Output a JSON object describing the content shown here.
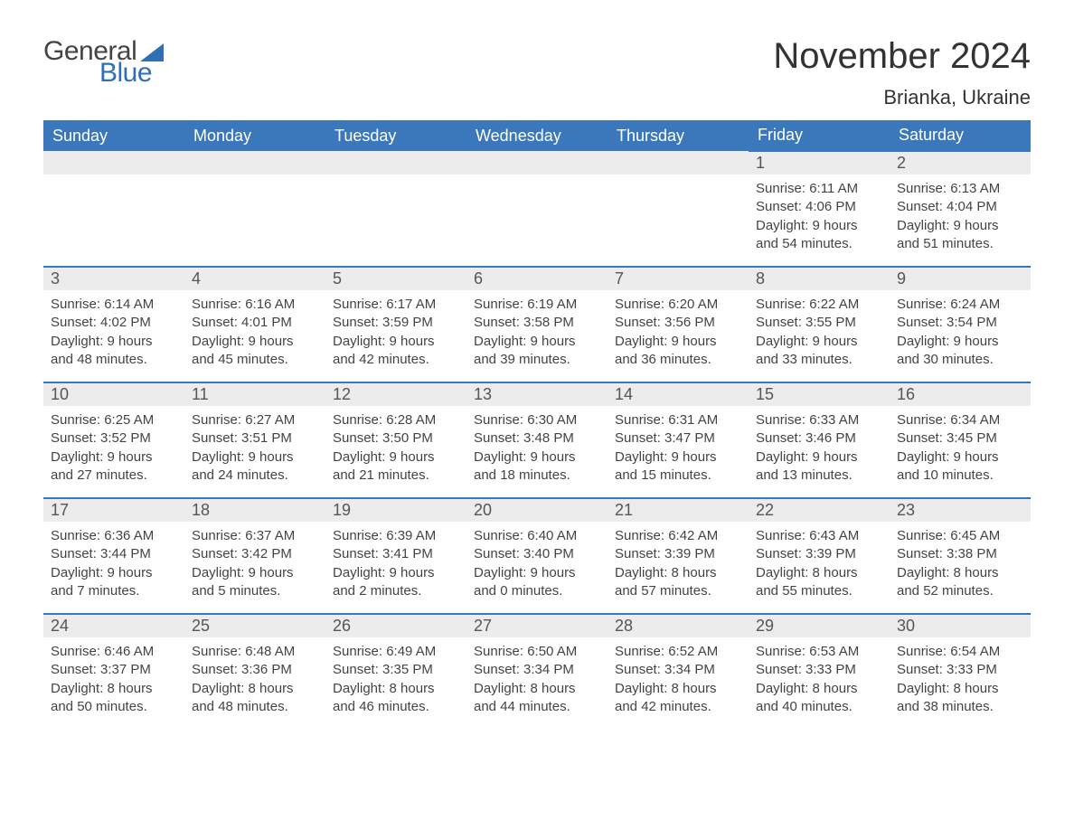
{
  "logo": {
    "text1": "General",
    "text2": "Blue"
  },
  "title": "November 2024",
  "location": "Brianka, Ukraine",
  "colors": {
    "header_bg": "#3a78bb",
    "header_text": "#ffffff",
    "daybar_bg": "#ececec",
    "daybar_text": "#555555",
    "body_text": "#444444",
    "border": "#3a78bb",
    "logo_blue": "#2f6fb3"
  },
  "weekdays": [
    "Sunday",
    "Monday",
    "Tuesday",
    "Wednesday",
    "Thursday",
    "Friday",
    "Saturday"
  ],
  "weeks": [
    [
      null,
      null,
      null,
      null,
      null,
      {
        "n": "1",
        "sr": "6:11 AM",
        "ss": "4:06 PM",
        "dl": "9 hours and 54 minutes."
      },
      {
        "n": "2",
        "sr": "6:13 AM",
        "ss": "4:04 PM",
        "dl": "9 hours and 51 minutes."
      }
    ],
    [
      {
        "n": "3",
        "sr": "6:14 AM",
        "ss": "4:02 PM",
        "dl": "9 hours and 48 minutes."
      },
      {
        "n": "4",
        "sr": "6:16 AM",
        "ss": "4:01 PM",
        "dl": "9 hours and 45 minutes."
      },
      {
        "n": "5",
        "sr": "6:17 AM",
        "ss": "3:59 PM",
        "dl": "9 hours and 42 minutes."
      },
      {
        "n": "6",
        "sr": "6:19 AM",
        "ss": "3:58 PM",
        "dl": "9 hours and 39 minutes."
      },
      {
        "n": "7",
        "sr": "6:20 AM",
        "ss": "3:56 PM",
        "dl": "9 hours and 36 minutes."
      },
      {
        "n": "8",
        "sr": "6:22 AM",
        "ss": "3:55 PM",
        "dl": "9 hours and 33 minutes."
      },
      {
        "n": "9",
        "sr": "6:24 AM",
        "ss": "3:54 PM",
        "dl": "9 hours and 30 minutes."
      }
    ],
    [
      {
        "n": "10",
        "sr": "6:25 AM",
        "ss": "3:52 PM",
        "dl": "9 hours and 27 minutes."
      },
      {
        "n": "11",
        "sr": "6:27 AM",
        "ss": "3:51 PM",
        "dl": "9 hours and 24 minutes."
      },
      {
        "n": "12",
        "sr": "6:28 AM",
        "ss": "3:50 PM",
        "dl": "9 hours and 21 minutes."
      },
      {
        "n": "13",
        "sr": "6:30 AM",
        "ss": "3:48 PM",
        "dl": "9 hours and 18 minutes."
      },
      {
        "n": "14",
        "sr": "6:31 AM",
        "ss": "3:47 PM",
        "dl": "9 hours and 15 minutes."
      },
      {
        "n": "15",
        "sr": "6:33 AM",
        "ss": "3:46 PM",
        "dl": "9 hours and 13 minutes."
      },
      {
        "n": "16",
        "sr": "6:34 AM",
        "ss": "3:45 PM",
        "dl": "9 hours and 10 minutes."
      }
    ],
    [
      {
        "n": "17",
        "sr": "6:36 AM",
        "ss": "3:44 PM",
        "dl": "9 hours and 7 minutes."
      },
      {
        "n": "18",
        "sr": "6:37 AM",
        "ss": "3:42 PM",
        "dl": "9 hours and 5 minutes."
      },
      {
        "n": "19",
        "sr": "6:39 AM",
        "ss": "3:41 PM",
        "dl": "9 hours and 2 minutes."
      },
      {
        "n": "20",
        "sr": "6:40 AM",
        "ss": "3:40 PM",
        "dl": "9 hours and 0 minutes."
      },
      {
        "n": "21",
        "sr": "6:42 AM",
        "ss": "3:39 PM",
        "dl": "8 hours and 57 minutes."
      },
      {
        "n": "22",
        "sr": "6:43 AM",
        "ss": "3:39 PM",
        "dl": "8 hours and 55 minutes."
      },
      {
        "n": "23",
        "sr": "6:45 AM",
        "ss": "3:38 PM",
        "dl": "8 hours and 52 minutes."
      }
    ],
    [
      {
        "n": "24",
        "sr": "6:46 AM",
        "ss": "3:37 PM",
        "dl": "8 hours and 50 minutes."
      },
      {
        "n": "25",
        "sr": "6:48 AM",
        "ss": "3:36 PM",
        "dl": "8 hours and 48 minutes."
      },
      {
        "n": "26",
        "sr": "6:49 AM",
        "ss": "3:35 PM",
        "dl": "8 hours and 46 minutes."
      },
      {
        "n": "27",
        "sr": "6:50 AM",
        "ss": "3:34 PM",
        "dl": "8 hours and 44 minutes."
      },
      {
        "n": "28",
        "sr": "6:52 AM",
        "ss": "3:34 PM",
        "dl": "8 hours and 42 minutes."
      },
      {
        "n": "29",
        "sr": "6:53 AM",
        "ss": "3:33 PM",
        "dl": "8 hours and 40 minutes."
      },
      {
        "n": "30",
        "sr": "6:54 AM",
        "ss": "3:33 PM",
        "dl": "8 hours and 38 minutes."
      }
    ]
  ],
  "labels": {
    "sunrise": "Sunrise: ",
    "sunset": "Sunset: ",
    "daylight": "Daylight: "
  }
}
